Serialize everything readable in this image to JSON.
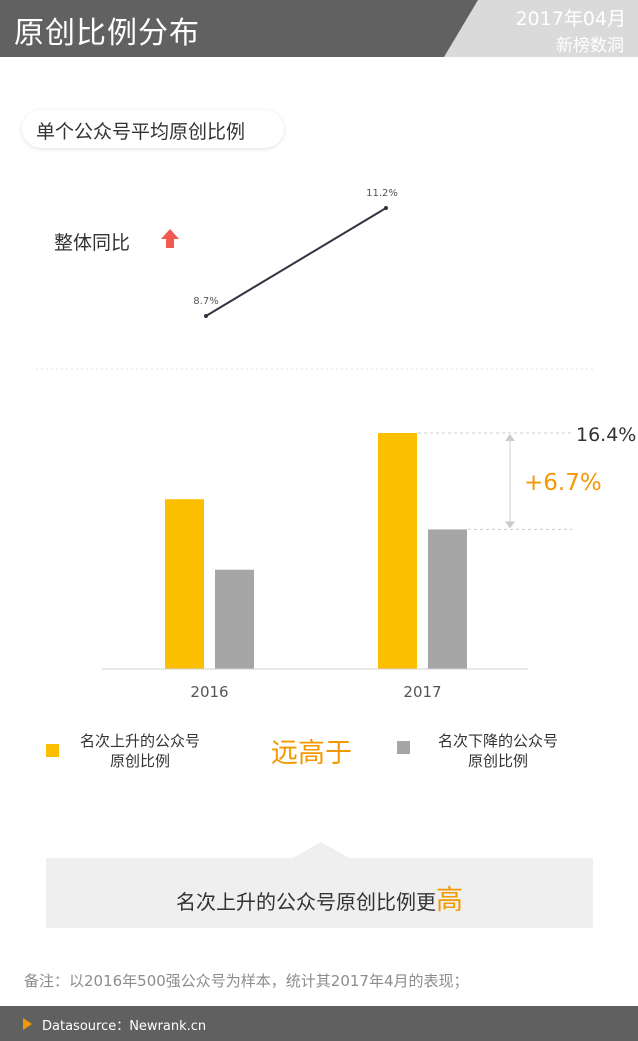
{
  "header": {
    "title": "原创比例分布",
    "date": "2017年04月",
    "brand": "新榜数洞"
  },
  "section": {
    "pill_label": "单个公众号平均原创比例",
    "yoy_label": "整体同比"
  },
  "colors": {
    "header_bg": "#616161",
    "accent": "#f39800",
    "rising_bar": "#fcbf00",
    "falling_bar": "#a6a6a6",
    "trend_up": "#f05a50",
    "trend_line": "#333344",
    "footer_bg": "#606060"
  },
  "chart_data": [
    {
      "type": "line",
      "x": [
        "2016",
        "2017"
      ],
      "values": [
        8.7,
        11.2
      ],
      "data_labels": [
        "8.7%",
        "11.2%"
      ]
    },
    {
      "type": "bar",
      "categories": [
        "2016",
        "2017"
      ],
      "series": [
        {
          "name": "名次上升的公众号原创比例",
          "values": [
            11.8,
            16.4
          ]
        },
        {
          "name": "名次下降的公众号原创比例",
          "values": [
            6.9,
            9.7
          ]
        }
      ],
      "annotations": {
        "top_label": "16.4%",
        "diff_label": "+6.7%"
      },
      "ylim": [
        0,
        20
      ]
    }
  ],
  "legend": {
    "rising_line1": "名次上升的公众号",
    "rising_line2": "原创比例",
    "compare": "远高于",
    "falling_line1": "名次下降的公众号",
    "falling_line2": "原创比例"
  },
  "callout": {
    "text": "名次上升的公众号原创比例更",
    "emphasis": "高"
  },
  "note": "备注：以2016年500强公众号为样本，统计其2017年4月的表现；",
  "footer": {
    "datasource": "Datasource：Newrank.cn"
  }
}
